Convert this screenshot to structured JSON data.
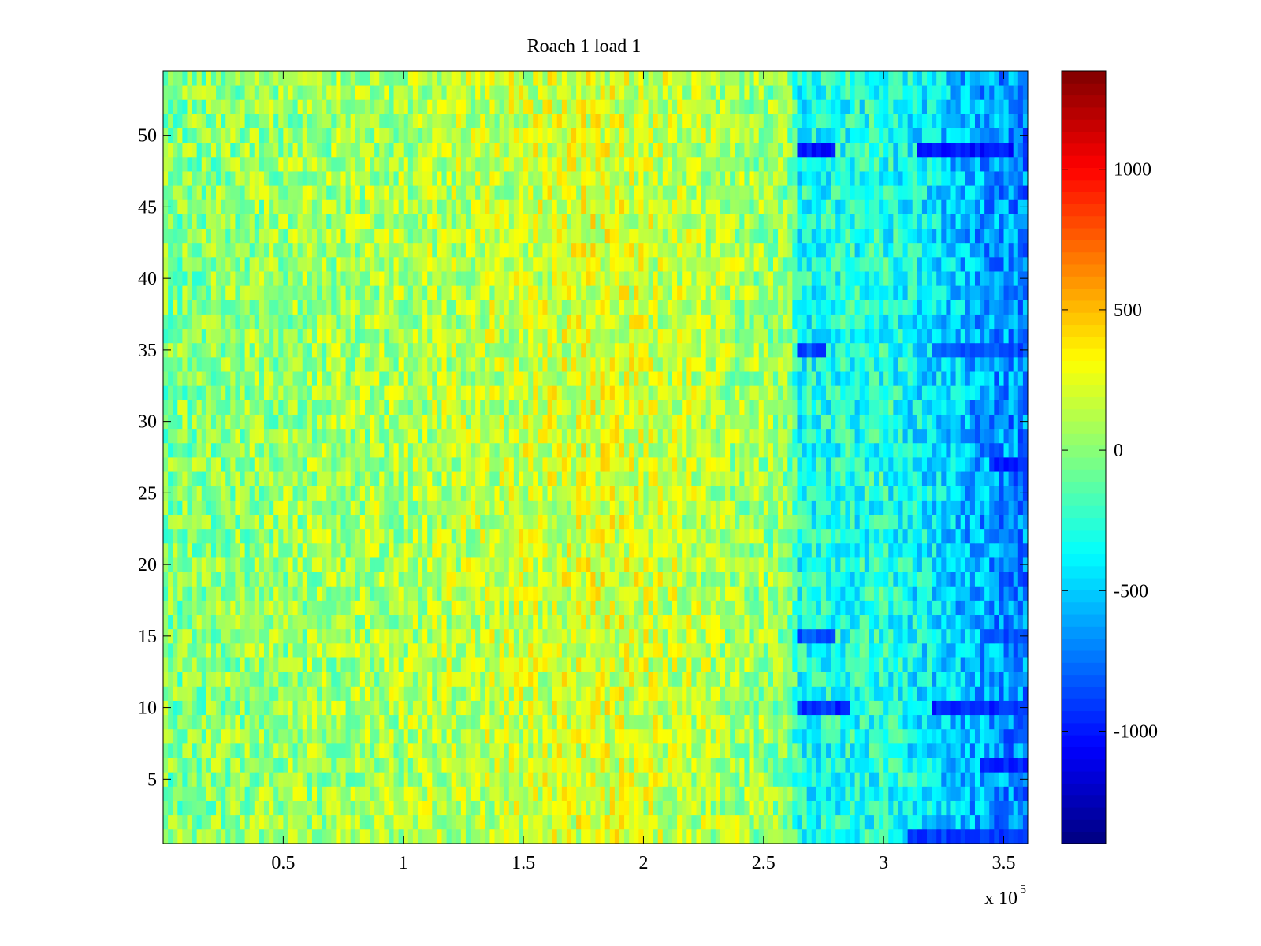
{
  "chart_data": {
    "type": "heatmap",
    "title": "Roach 1 load 1",
    "xlabel": "",
    "ylabel": "",
    "x_multiplier_label": "x 10",
    "x_multiplier_exponent": "5",
    "xlim": [
      0,
      3.6
    ],
    "ylim": [
      0.5,
      54.5
    ],
    "rows": 54,
    "xticks": [
      0.5,
      1,
      1.5,
      2,
      2.5,
      3,
      3.5
    ],
    "xtick_labels": [
      "0.5",
      "1",
      "1.5",
      "2",
      "2.5",
      "3",
      "3.5"
    ],
    "yticks": [
      5,
      10,
      15,
      20,
      25,
      30,
      35,
      40,
      45,
      50
    ],
    "ytick_labels": [
      "5",
      "10",
      "15",
      "20",
      "25",
      "30",
      "35",
      "40",
      "45",
      "50"
    ],
    "colormap": "jet",
    "clim": [
      -1400,
      1350
    ],
    "colorbar_ticks": [
      1000,
      500,
      0,
      -500,
      -1000
    ],
    "colorbar_labels": [
      "1000",
      "500",
      "0",
      "-500",
      "-1000"
    ],
    "value_profile_x": [
      0,
      0.5,
      1.0,
      1.5,
      1.8,
      2.0,
      2.3,
      2.6,
      2.65,
      3.0,
      3.2,
      3.4,
      3.6
    ],
    "value_profile_mean": [
      -30,
      40,
      90,
      170,
      220,
      190,
      110,
      10,
      -320,
      -280,
      -420,
      -600,
      -700
    ],
    "strong_low_bands": [
      {
        "row": 49,
        "x_ranges": [
          [
            2.65,
            2.8
          ],
          [
            3.15,
            3.55
          ]
        ],
        "value": -1000
      },
      {
        "row": 35,
        "x_ranges": [
          [
            2.65,
            2.75
          ],
          [
            3.2,
            3.6
          ]
        ],
        "value": -850
      },
      {
        "row": 10,
        "x_ranges": [
          [
            2.65,
            2.85
          ],
          [
            3.2,
            3.6
          ]
        ],
        "value": -950
      },
      {
        "row": 15,
        "x_ranges": [
          [
            2.65,
            2.8
          ],
          [
            3.4,
            3.6
          ]
        ],
        "value": -850
      },
      {
        "row": 6,
        "x_ranges": [
          [
            3.4,
            3.6
          ]
        ],
        "value": -1000
      },
      {
        "row": 27,
        "x_ranges": [
          [
            3.45,
            3.6
          ]
        ],
        "value": -950
      },
      {
        "row": 1,
        "x_ranges": [
          [
            3.1,
            3.6
          ]
        ],
        "value": -900
      }
    ]
  }
}
